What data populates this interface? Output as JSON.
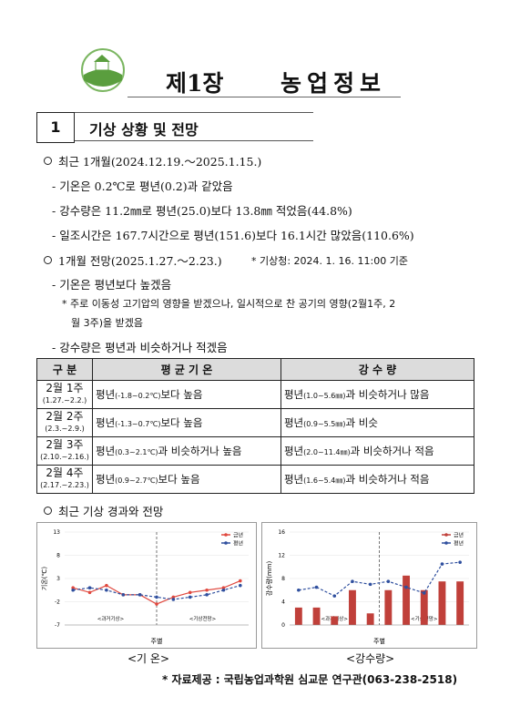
{
  "header": {
    "chapter": "제1장",
    "title": "농업정보"
  },
  "section": {
    "number": "1",
    "title": "기상 상황 및 전망"
  },
  "recent": {
    "heading": "최근 1개월(2024.12.19.～2025.1.15.)",
    "items": [
      "- 기온은 0.2℃로 평년(0.2)과 같았음",
      "- 강수량은 11.2㎜로 평년(25.0)보다 13.8㎜ 적었음(44.8%)",
      "- 일조시간은 167.7시간으로 평년(151.6)보다 16.1시간 많았음(110.6%)"
    ]
  },
  "outlook": {
    "heading": "1개월 전망(2025.1.27.～2.23.)",
    "source": "* 기상청: 2024. 1. 16. 11:00 기준",
    "items": [
      "- 기온은 평년보다 높겠음",
      "- 강수량은 평년과 비슷하거나 적겠음"
    ],
    "note": [
      "* 주로 이동성 고기압의 영향을 받겠으나, 일시적으로 찬 공기의 영향(2월1주, 2",
      "월 3주)을 받겠음"
    ]
  },
  "table": {
    "headers": [
      "구 분",
      "평 균 기 온",
      "강 수 량"
    ],
    "rows": [
      {
        "week": "2월 1주",
        "dates": "(1.27.~2.2.)",
        "temp": {
          "pre": "평년",
          "range": "(-1.8~0.2℃)",
          "post": "보다 높음"
        },
        "precip": {
          "pre": "평년",
          "range": "(1.0~5.6㎜)",
          "post": "과 비슷하거나 많음"
        }
      },
      {
        "week": "2월 2주",
        "dates": "(2.3.~2.9.)",
        "temp": {
          "pre": "평년",
          "range": "(-1.3~0.7℃)",
          "post": "보다 높음"
        },
        "precip": {
          "pre": "평년",
          "range": "(0.9~5.5㎜)",
          "post": "과 비슷"
        }
      },
      {
        "week": "2월 3주",
        "dates": "(2.10.~2.16.)",
        "temp": {
          "pre": "평년",
          "range": "(0.3~2.1℃)",
          "post": "과 비슷하거나 높음"
        },
        "precip": {
          "pre": "평년",
          "range": "(2.0~11.4㎜)",
          "post": "과 비슷하거나 적음"
        }
      },
      {
        "week": "2월 4주",
        "dates": "(2.17.~2.23.)",
        "temp": {
          "pre": "평년",
          "range": "(0.9~2.7℃)",
          "post": "보다 높음"
        },
        "precip": {
          "pre": "평년",
          "range": "(1.6~5.4㎜)",
          "post": "과 비슷하거나 적음"
        }
      }
    ]
  },
  "charts_heading": "최근 기상 경과와 전망",
  "charts": [
    {
      "type": "line",
      "ylabel": "기온(℃)",
      "xlabel": "주별",
      "caption": "<기 온>",
      "annotations": [
        "<과거기상>",
        "<기상전망>"
      ],
      "categories": [
        null,
        null,
        null,
        null,
        null,
        null,
        null,
        null,
        null,
        null,
        null
      ],
      "series": [
        {
          "name": "금년",
          "color": "#e0483e",
          "kind": "line",
          "values": [
            1.0,
            0.0,
            1.5,
            -0.5,
            -0.5,
            -2.5,
            -1.0,
            0.0,
            0.5,
            1.0,
            2.5
          ]
        },
        {
          "name": "평년",
          "color": "#2f4f9e",
          "kind": "line",
          "dashed": true,
          "values": [
            0.5,
            1.0,
            0.5,
            -0.5,
            -0.5,
            -1.0,
            -1.5,
            -1.0,
            -0.5,
            0.5,
            1.5
          ]
        }
      ],
      "ylim": [
        -7,
        13
      ],
      "yticks": [
        -7,
        -2,
        3,
        8,
        13
      ],
      "grid": true,
      "legend": "top-right"
    },
    {
      "type": "bar",
      "ylabel": "강수량(mm)",
      "xlabel": "주별",
      "caption": "<강수량>",
      "annotations": [
        "<과거기상>",
        "<기상전망>"
      ],
      "categories": [
        null,
        null,
        null,
        null,
        null,
        null,
        null,
        null,
        null,
        null
      ],
      "series": [
        {
          "name": "금년",
          "color": "#c0403a",
          "kind": "bar",
          "values": [
            3.0,
            3.0,
            1.5,
            6.0,
            2.0,
            6.0,
            8.5,
            6.0,
            7.5,
            7.5
          ]
        },
        {
          "name": "평년",
          "color": "#2f4f9e",
          "kind": "line",
          "dashed": true,
          "values": [
            6.0,
            6.5,
            5.0,
            7.5,
            7.0,
            7.5,
            6.5,
            5.5,
            10.5,
            10.8
          ]
        }
      ],
      "ylim": [
        0,
        16
      ],
      "yticks": [
        0,
        4,
        8,
        12,
        16
      ],
      "grid": true,
      "legend": "top-right"
    }
  ],
  "footer": "* 자료제공 : 국립농업과학원 심교문 연구관(063-238-2518)"
}
